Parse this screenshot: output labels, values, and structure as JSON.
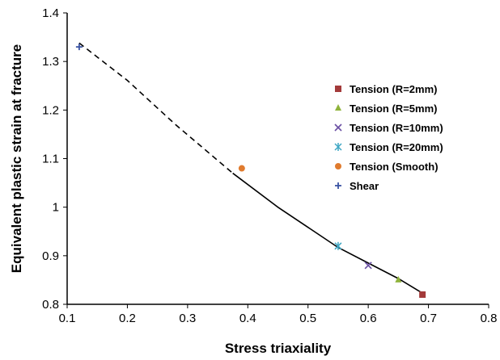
{
  "chart_data": {
    "type": "scatter",
    "title": "",
    "xlabel": "Stress triaxiality",
    "ylabel": "Equivalent plastic strain at fracture",
    "xlim": [
      0.1,
      0.8
    ],
    "ylim": [
      0.8,
      1.4
    ],
    "xticks": [
      "0.1",
      "0.2",
      "0.3",
      "0.4",
      "0.5",
      "0.6",
      "0.7",
      "0.8"
    ],
    "yticks": [
      "0.8",
      "0.9",
      "1",
      "1.1",
      "1.2",
      "1.3",
      "1.4"
    ],
    "grid": false,
    "legend_position": "right",
    "series": [
      {
        "name": "Tension (R=2mm)",
        "marker": "square",
        "color": "#a33a3a",
        "points": [
          [
            0.69,
            0.82
          ]
        ]
      },
      {
        "name": "Tension (R=5mm)",
        "marker": "triangle",
        "color": "#8fb33b",
        "points": [
          [
            0.65,
            0.85
          ]
        ]
      },
      {
        "name": "Tension (R=10mm)",
        "marker": "x",
        "color": "#6a4fa3",
        "points": [
          [
            0.6,
            0.88
          ]
        ]
      },
      {
        "name": "Tension (R=20mm)",
        "marker": "star",
        "color": "#3fa7c4",
        "points": [
          [
            0.55,
            0.92
          ]
        ]
      },
      {
        "name": "Tension (Smooth)",
        "marker": "circle",
        "color": "#e07b2e",
        "points": [
          [
            0.39,
            1.08
          ]
        ]
      },
      {
        "name": "Shear",
        "marker": "plus",
        "color": "#3a53a3",
        "points": [
          [
            0.12,
            1.33
          ]
        ]
      }
    ],
    "fit_curve": {
      "color": "#000000",
      "dashed_segment": [
        [
          0.12,
          1.338
        ],
        [
          0.2,
          1.261
        ],
        [
          0.28,
          1.17
        ],
        [
          0.375,
          1.07
        ]
      ],
      "solid_segment": [
        [
          0.375,
          1.07
        ],
        [
          0.45,
          1.0
        ],
        [
          0.55,
          0.917
        ],
        [
          0.6,
          0.885
        ],
        [
          0.65,
          0.853
        ],
        [
          0.69,
          0.823
        ]
      ]
    }
  }
}
